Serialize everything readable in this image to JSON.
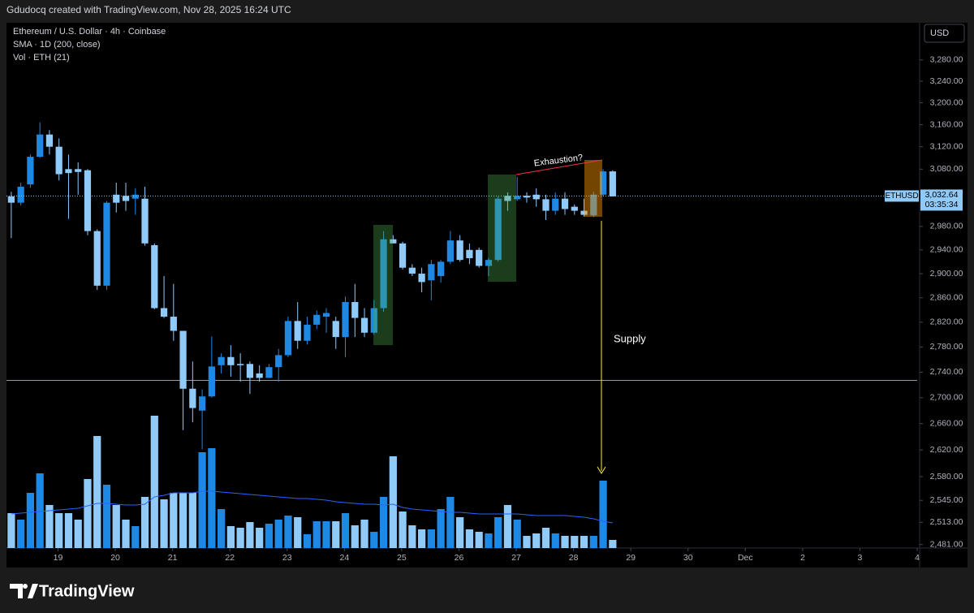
{
  "header": {
    "caption": "Gdudocq created with TradingView.com, Nov 28, 2025 16:24 UTC"
  },
  "chart_data": {
    "type": "candlestick",
    "legend": [
      "Ethereum / U.S. Dollar · 4h · Coinbase",
      "SMA · 1D (200, close)",
      "Vol · ETH (21)"
    ],
    "currency": "USD",
    "up_color": "#1e88e5",
    "down_color": "#90caf9",
    "open": [
      3032,
      3021,
      3053,
      3102,
      3142,
      3120,
      3080,
      3080,
      3078,
      2972,
      2880,
      3035,
      3033,
      3028,
      3028,
      2948,
      2843,
      2829,
      2806,
      2714,
      2680,
      2702,
      2751,
      2764,
      2753,
      2753,
      2738,
      2731,
      2748,
      2767,
      2822,
      2790,
      2816,
      2829,
      2822,
      2796,
      2853,
      2827,
      2803,
      2843,
      2958,
      2951,
      2910,
      2900,
      2889,
      2896,
      2920,
      2956,
      2940,
      2940,
      2913,
      2923,
      3033,
      3027,
      3033,
      3035,
      3027,
      3007,
      3028,
      3014,
      3007,
      2999,
      3035,
      3076
    ],
    "high": [
      3040,
      3056,
      3106,
      3164,
      3150,
      3135,
      3106,
      3092,
      3080,
      2975,
      3024,
      3056,
      3056,
      3046,
      3049,
      2951,
      2896,
      2883,
      2806,
      2757,
      2713,
      2797,
      2770,
      2783,
      2770,
      2757,
      2751,
      2753,
      2777,
      2829,
      2853,
      2829,
      2839,
      2843,
      2829,
      2862,
      2883,
      2843,
      2856,
      2972,
      2965,
      2954,
      2916,
      2910,
      2923,
      2923,
      2972,
      2965,
      2951,
      2944,
      2926,
      3032,
      3039,
      3066,
      3039,
      3046,
      3035,
      3039,
      3039,
      3018,
      3028,
      3040,
      3080,
      3078
    ],
    "low": [
      2960,
      3016,
      3047,
      3100,
      3106,
      3060,
      2993,
      3035,
      2965,
      2873,
      2873,
      3004,
      3007,
      3000,
      2947,
      2841,
      2827,
      2790,
      2650,
      2662,
      2621,
      2700,
      2738,
      2733,
      2725,
      2706,
      2725,
      2731,
      2725,
      2764,
      2777,
      2784,
      2809,
      2803,
      2777,
      2764,
      2796,
      2796,
      2800,
      2837,
      2951,
      2907,
      2896,
      2869,
      2856,
      2885,
      2916,
      2920,
      2916,
      2910,
      2896,
      2920,
      3007,
      3024,
      3021,
      3014,
      2991,
      3000,
      3000,
      3000,
      2997,
      2996,
      3032,
      3032
    ],
    "close": [
      3021,
      3049,
      3102,
      3142,
      3120,
      3071,
      3073,
      3075,
      2972,
      2880,
      3021,
      3021,
      3024,
      3035,
      2951,
      2843,
      2829,
      2806,
      2714,
      2684,
      2702,
      2749,
      2764,
      2751,
      2751,
      2731,
      2731,
      2748,
      2767,
      2822,
      2790,
      2816,
      2832,
      2835,
      2796,
      2853,
      2827,
      2803,
      2843,
      2958,
      2951,
      2910,
      2900,
      2886,
      2916,
      2920,
      2956,
      2923,
      2926,
      2913,
      2923,
      3028,
      3024,
      3033,
      3030,
      3027,
      3007,
      3028,
      3010,
      3007,
      3000,
      3035,
      3076,
      3032
    ],
    "volume": [
      43,
      35,
      68,
      92,
      53,
      43,
      43,
      35,
      85,
      138,
      78,
      53,
      35,
      27,
      63,
      163,
      60,
      68,
      68,
      68,
      118,
      123,
      48,
      27,
      25,
      32,
      25,
      30,
      35,
      40,
      38,
      17,
      33,
      33,
      33,
      43,
      28,
      35,
      20,
      63,
      113,
      45,
      28,
      23,
      23,
      48,
      63,
      38,
      23,
      20,
      18,
      38,
      53,
      35,
      15,
      18,
      25,
      18,
      15,
      15,
      15,
      15,
      83,
      10
    ],
    "volume_ma": [
      42,
      43,
      44,
      45,
      46,
      47,
      48,
      49,
      52,
      55,
      55,
      54,
      53,
      53,
      54,
      63,
      65,
      68,
      68,
      68,
      70,
      70,
      69,
      68,
      67,
      66,
      65,
      64,
      63,
      62,
      61,
      61,
      60,
      59,
      57,
      56,
      55,
      54,
      54,
      53,
      54,
      50,
      48,
      47,
      46,
      45,
      44,
      44,
      43,
      42,
      42,
      42,
      42,
      42,
      41,
      40,
      40,
      40,
      40,
      39,
      38,
      36,
      33,
      31
    ],
    "volume_ma_color": "#2962ff",
    "vlim": [
      0,
      200
    ],
    "sma_value": 2727,
    "sma_color": "#9598a1",
    "log_scale": true,
    "grid": false,
    "ylim": [
      2476,
      3351
    ],
    "yticks": [
      {
        "value": 3280,
        "label": "3,280.00"
      },
      {
        "value": 3240,
        "label": "3,240.00"
      },
      {
        "value": 3200,
        "label": "3,200.00"
      },
      {
        "value": 3160,
        "label": "3,160.00"
      },
      {
        "value": 3120,
        "label": "3,120.00"
      },
      {
        "value": 3080,
        "label": "3,080.00"
      },
      {
        "value": 2980,
        "label": "2,980.00"
      },
      {
        "value": 2940,
        "label": "2,940.00"
      },
      {
        "value": 2900,
        "label": "2,900.00"
      },
      {
        "value": 2860,
        "label": "2,860.00"
      },
      {
        "value": 2820,
        "label": "2,820.00"
      },
      {
        "value": 2780,
        "label": "2,780.00"
      },
      {
        "value": 2740,
        "label": "2,740.00"
      },
      {
        "value": 2700,
        "label": "2,700.00"
      },
      {
        "value": 2660,
        "label": "2,660.00"
      },
      {
        "value": 2620,
        "label": "2,620.00"
      },
      {
        "value": 2580,
        "label": "2,580.00"
      },
      {
        "value": 2545,
        "label": "2,545.00"
      },
      {
        "value": 2513,
        "label": "2,513.00"
      },
      {
        "value": 2481,
        "label": "2,481.00"
      }
    ],
    "xlim": [
      18.1,
      34
    ],
    "xticks": [
      19,
      20,
      21,
      22,
      23,
      24,
      25,
      26,
      27,
      28,
      29,
      30,
      {
        "value": 31,
        "label": "Dec"
      },
      {
        "value": 32,
        "label": "2"
      },
      {
        "value": 33,
        "label": "3"
      },
      {
        "value": 34,
        "label": "4"
      }
    ],
    "last_price": {
      "symbol": "ETHUSD",
      "price": {
        "value": 3032.64,
        "label": "3,032.64"
      },
      "countdown": "03:35:34"
    },
    "annotations": [
      "Exhaustion?",
      "Supply"
    ]
  },
  "footer": {
    "brand": "TradingView"
  }
}
